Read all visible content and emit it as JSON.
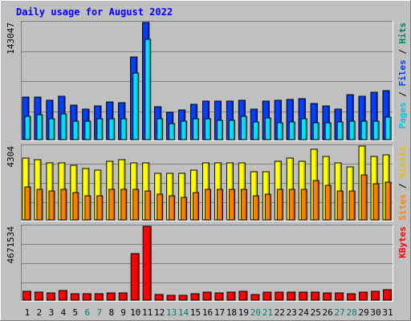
{
  "chart_data": {
    "type": "bar",
    "title": "Daily usage for August 2022",
    "days": [
      "1",
      "2",
      "3",
      "4",
      "5",
      "6",
      "7",
      "8",
      "9",
      "10",
      "11",
      "12",
      "13",
      "14",
      "15",
      "16",
      "17",
      "18",
      "19",
      "20",
      "21",
      "22",
      "23",
      "24",
      "25",
      "26",
      "27",
      "28",
      "29",
      "30",
      "31"
    ],
    "weekend_days": [
      "6",
      "7",
      "13",
      "14",
      "20",
      "21",
      "27",
      "28"
    ],
    "panels": [
      {
        "name": "hits-files-pages",
        "ymax_label": "143047",
        "ymax": 143047,
        "axis_label_parts": [
          {
            "text": "Pages",
            "color": "#00c0e0"
          },
          {
            "text": " / ",
            "color": "#000000"
          },
          {
            "text": "Files",
            "color": "#0040ff"
          },
          {
            "text": " / ",
            "color": "#000000"
          },
          {
            "text": "Hits",
            "color": "#00805c"
          }
        ],
        "series": [
          {
            "name": "Hits",
            "color": "#00805c",
            "values": [
              52000,
              52000,
              48000,
              53000,
              42000,
              37000,
              41000,
              46000,
              45000,
              101000,
              143047,
              40000,
              33000,
              36000,
              43000,
              47000,
              47000,
              47000,
              48000,
              37000,
              47000,
              48000,
              49000,
              50000,
              44000,
              41000,
              37000,
              55000,
              53000,
              58000,
              60000
            ]
          },
          {
            "name": "Files",
            "color": "#0040ff",
            "values": [
              52000,
              52000,
              48000,
              53000,
              42000,
              37000,
              41000,
              46000,
              45000,
              101000,
              143047,
              40000,
              33000,
              36000,
              43000,
              47000,
              47000,
              47000,
              48000,
              37000,
              47000,
              48000,
              49000,
              50000,
              44000,
              41000,
              37000,
              55000,
              53000,
              58000,
              60000
            ]
          },
          {
            "name": "Pages",
            "color": "#00e0f8",
            "values": [
              28000,
              30000,
              25000,
              31000,
              23000,
              23000,
              25000,
              25000,
              25000,
              81000,
              122000,
              25000,
              20000,
              23000,
              25000,
              25000,
              24000,
              24000,
              28000,
              22000,
              26000,
              21000,
              22000,
              25000,
              21000,
              21000,
              22000,
              23000,
              23000,
              23000,
              27000
            ]
          }
        ]
      },
      {
        "name": "visits-sites",
        "ymax_label": "4304",
        "ymax": 4304,
        "axis_label_parts": [
          {
            "text": "Sites",
            "color": "#ff8000"
          },
          {
            "text": " / ",
            "color": "#000000"
          },
          {
            "text": "Visits",
            "color": "#e0c000"
          }
        ],
        "series": [
          {
            "name": "Visits",
            "color": "#ffff00",
            "values": [
              3600,
              3500,
              3300,
              3300,
              3200,
              3000,
              2900,
              3400,
              3500,
              3300,
              3300,
              2700,
              2700,
              2700,
              2900,
              3300,
              3300,
              3300,
              3300,
              2800,
              2800,
              3400,
              3600,
              3400,
              4100,
              3700,
              3300,
              3100,
              4300,
              3700,
              3800
            ]
          },
          {
            "name": "Sites",
            "color": "#ff8000",
            "values": [
              1900,
              1800,
              1700,
              1800,
              1600,
              1400,
              1400,
              1800,
              1800,
              1800,
              1700,
              1500,
              1400,
              1300,
              1600,
              1800,
              1800,
              1800,
              1800,
              1400,
              1500,
              1800,
              1800,
              1800,
              2300,
              2000,
              1700,
              1700,
              2600,
              2100,
              2200
            ]
          }
        ]
      },
      {
        "name": "kbytes",
        "ymax_label": "4671534",
        "ymax": 4671534,
        "axis_label_parts": [
          {
            "text": "KBytes",
            "color": "#ff0000"
          }
        ],
        "series": [
          {
            "name": "KBytes",
            "color": "#ff0000",
            "values": [
              560000,
              500000,
              480000,
              620000,
              430000,
              400000,
              430000,
              470000,
              480000,
              2920000,
              4671534,
              360000,
              330000,
              330000,
              400000,
              500000,
              470000,
              500000,
              580000,
              380000,
              510000,
              500000,
              520000,
              530000,
              530000,
              480000,
              460000,
              430000,
              500000,
              560000,
              650000
            ]
          }
        ]
      }
    ]
  }
}
